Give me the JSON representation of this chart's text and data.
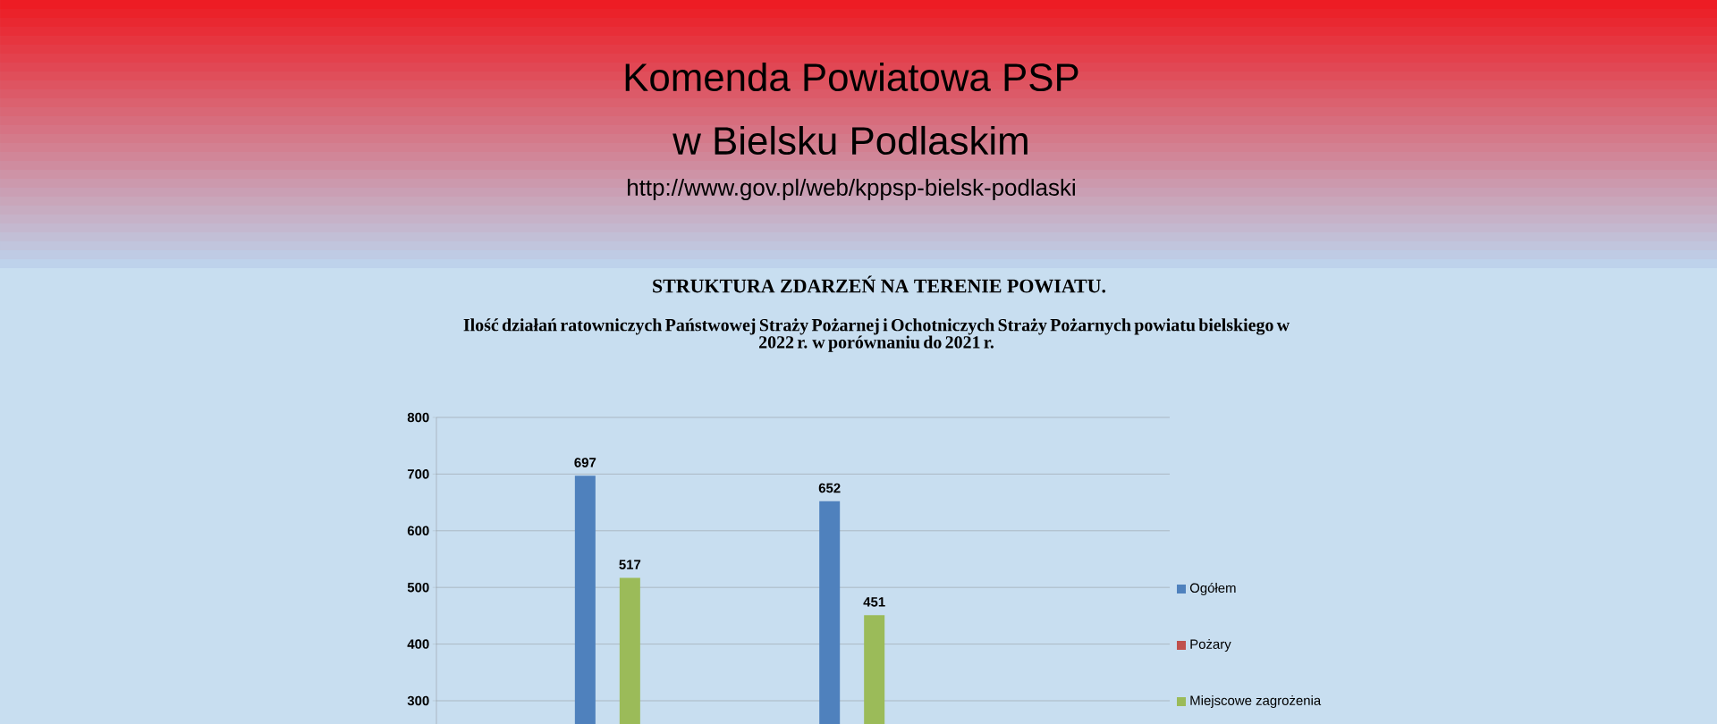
{
  "chart_data": {
    "type": "bar",
    "title": "STRUKTURA ZDARZEŃ  NA TERENIE POWIATU.",
    "subtitle": "Ilość działań ratowniczych Państwowej Straży Pożarnej i Ochotniczych Straży Pożarnych powiatu bielskiego w 2022 r. w porównaniu do 2021 r.",
    "annotations": [
      "Komenda Powiatowa PSP",
      "w Bielsku Podlaskim",
      "http://www.gov.pl/web/kppsp-bielsk-podlaski"
    ],
    "categories": [
      null,
      null
    ],
    "series": [
      {
        "name": "Ogółem",
        "color": "#4f81bd",
        "values": [
          697,
          652
        ]
      },
      {
        "name": "Pożary",
        "color": "#c0504d",
        "values": [
          null,
          null
        ]
      },
      {
        "name": "Miejscowe zagrożenia",
        "color": "#9bbb59",
        "values": [
          517,
          451
        ]
      }
    ],
    "ylim": [
      259,
      800
    ],
    "yticks": [
      300,
      400,
      500,
      600,
      700,
      800
    ],
    "grid": "y",
    "legend": "right",
    "data_labels": true
  }
}
